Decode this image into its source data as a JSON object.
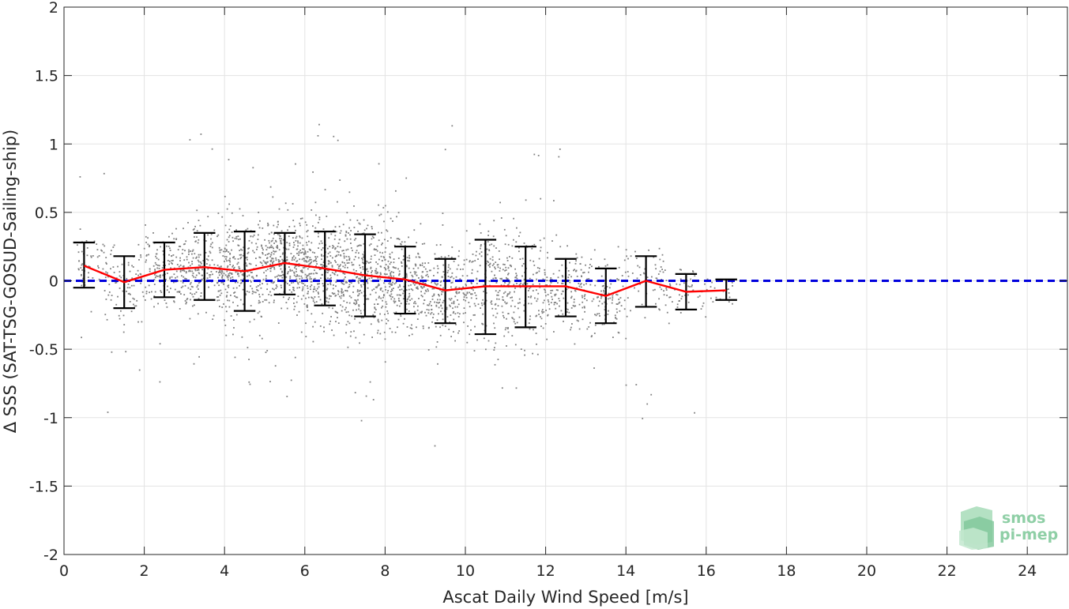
{
  "chart_data": {
    "type": "scatter",
    "xlabel": "Ascat Daily Wind Speed [m/s]",
    "ylabel": "Δ SSS (SAT-TSG-GOSUD-Sailing-ship)",
    "xlim": [
      0,
      25
    ],
    "ylim": [
      -2,
      2
    ],
    "xticks": [
      0,
      2,
      4,
      6,
      8,
      10,
      12,
      14,
      16,
      18,
      20,
      22,
      24
    ],
    "yticks": [
      -2,
      -1.5,
      -1,
      -0.5,
      0,
      0.5,
      1,
      1.5,
      2
    ],
    "grid": true,
    "reference_line": {
      "y": 0,
      "color": "#0000dd",
      "style": "dashed"
    },
    "scatter_color": "#808080",
    "scatter_x_range": [
      0.3,
      16.7
    ],
    "scatter_note": "dense cloud of individual matchup points, approx. 3000",
    "binned_mean": {
      "color": "#ff0000",
      "x": [
        0.5,
        1.5,
        2.5,
        3.5,
        4.5,
        5.5,
        6.5,
        7.5,
        8.5,
        9.5,
        10.5,
        11.5,
        12.5,
        13.5,
        14.5,
        15.5,
        16.5
      ],
      "y": [
        0.11,
        -0.01,
        0.08,
        0.1,
        0.07,
        0.13,
        0.09,
        0.04,
        0.01,
        -0.07,
        -0.04,
        -0.04,
        -0.04,
        -0.11,
        0.0,
        -0.08,
        -0.07
      ]
    },
    "error_bars": {
      "color": "#000000",
      "x": [
        0.5,
        1.5,
        2.5,
        3.5,
        4.5,
        5.5,
        6.5,
        7.5,
        8.5,
        9.5,
        10.5,
        11.5,
        12.5,
        13.5,
        14.5,
        15.5,
        16.5
      ],
      "upper": [
        0.28,
        0.18,
        0.28,
        0.35,
        0.36,
        0.35,
        0.36,
        0.34,
        0.25,
        0.16,
        0.3,
        0.25,
        0.16,
        0.09,
        0.18,
        0.05,
        0.01
      ],
      "lower": [
        -0.05,
        -0.2,
        -0.12,
        -0.14,
        -0.22,
        -0.1,
        -0.18,
        -0.26,
        -0.24,
        -0.31,
        -0.39,
        -0.34,
        -0.26,
        -0.31,
        -0.19,
        -0.21,
        -0.14
      ]
    }
  },
  "logo": {
    "line1": "smos",
    "line2": "pi-mep",
    "color": "#8fcfa6"
  }
}
